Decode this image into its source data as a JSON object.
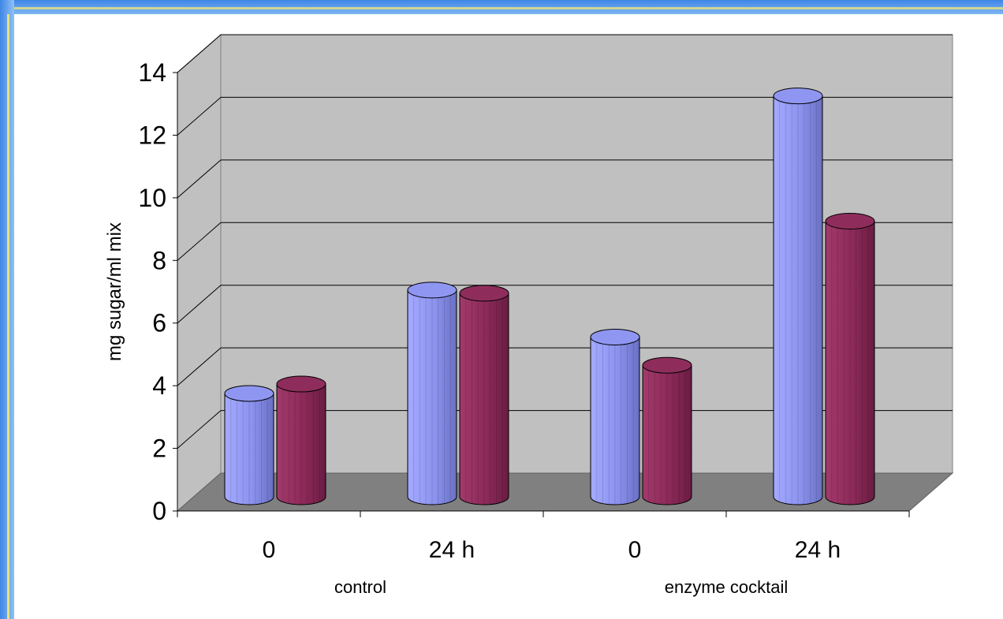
{
  "chart_data": {
    "type": "bar",
    "style": "3d-cylinder",
    "ylabel": "mg sugar/ml mix",
    "ylim": [
      0,
      14
    ],
    "yticks": [
      "0",
      "2",
      "4",
      "6",
      "8",
      "10",
      "12",
      "14"
    ],
    "categories": [
      "0",
      "24 h",
      "0",
      "24 h"
    ],
    "groups": [
      {
        "label": "control",
        "categories": [
          0,
          1
        ]
      },
      {
        "label": "enzyme cocktail",
        "categories": [
          2,
          3
        ]
      }
    ],
    "series": [
      {
        "values": [
          3.3,
          6.6,
          5.1,
          12.8
        ],
        "color": "#8f96f2"
      },
      {
        "values": [
          3.6,
          6.5,
          4.2,
          8.8
        ],
        "color": "#8e2d5c"
      }
    ],
    "grid": true,
    "legend": "none"
  }
}
